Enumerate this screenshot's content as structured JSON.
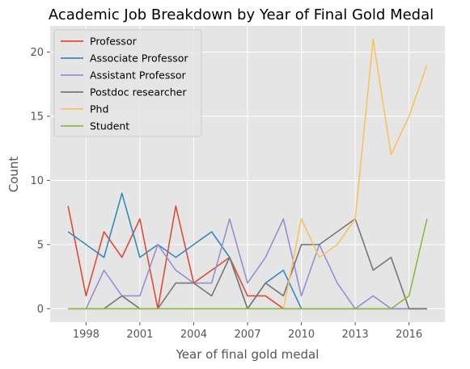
{
  "chart_data": {
    "type": "line",
    "title": "Academic Job Breakdown by Year of Final Gold Medal",
    "xlabel": "Year of final gold medal",
    "ylabel": "Count",
    "x": [
      1997,
      1998,
      1999,
      2000,
      2001,
      2002,
      2003,
      2004,
      2005,
      2006,
      2007,
      2008,
      2009,
      2010,
      2011,
      2012,
      2013,
      2014,
      2015,
      2016,
      2017
    ],
    "xticks": [
      1998,
      2001,
      2004,
      2007,
      2010,
      2013,
      2016
    ],
    "xtick_labels": [
      "1998",
      "2001",
      "2004",
      "2007",
      "2010",
      "2013",
      "2016"
    ],
    "yticks": [
      0,
      5,
      10,
      15,
      20
    ],
    "ytick_labels": [
      "0",
      "5",
      "10",
      "15",
      "20"
    ],
    "xlim": [
      1996.0,
      2018.0
    ],
    "ylim": [
      -1.05,
      22.05
    ],
    "grid": true,
    "legend_position": "top-left",
    "series": [
      {
        "name": "Professor",
        "color": "#E24A33",
        "values": [
          8,
          1,
          6,
          4,
          7,
          0,
          8,
          2,
          3,
          4,
          1,
          1,
          0,
          0,
          0,
          0,
          0,
          0,
          0,
          0,
          0
        ]
      },
      {
        "name": "Associate Professor",
        "color": "#348ABD",
        "values": [
          6,
          5,
          4,
          9,
          4,
          5,
          4,
          5,
          6,
          4,
          0,
          2,
          3,
          0,
          0,
          0,
          0,
          0,
          0,
          0,
          0
        ]
      },
      {
        "name": "Assistant Professor",
        "color": "#988ED5",
        "values": [
          0,
          0,
          3,
          1,
          1,
          5,
          3,
          2,
          2,
          7,
          2,
          4,
          7,
          1,
          5,
          2,
          0,
          1,
          0,
          0,
          0
        ]
      },
      {
        "name": "Postdoc researcher",
        "color": "#777777",
        "values": [
          0,
          0,
          0,
          1,
          0,
          0,
          2,
          2,
          1,
          4,
          0,
          2,
          1,
          5,
          5,
          6,
          7,
          3,
          4,
          0,
          0
        ]
      },
      {
        "name": "Phd",
        "color": "#FBC15E",
        "values": [
          0,
          0,
          0,
          0,
          0,
          0,
          0,
          0,
          0,
          0,
          0,
          0,
          0,
          7,
          4,
          5,
          7,
          21,
          12,
          15,
          19
        ]
      },
      {
        "name": "Student",
        "color": "#8EBA42",
        "values": [
          0,
          0,
          0,
          0,
          0,
          0,
          0,
          0,
          0,
          0,
          0,
          0,
          0,
          0,
          0,
          0,
          0,
          0,
          0,
          1,
          7
        ]
      }
    ]
  }
}
